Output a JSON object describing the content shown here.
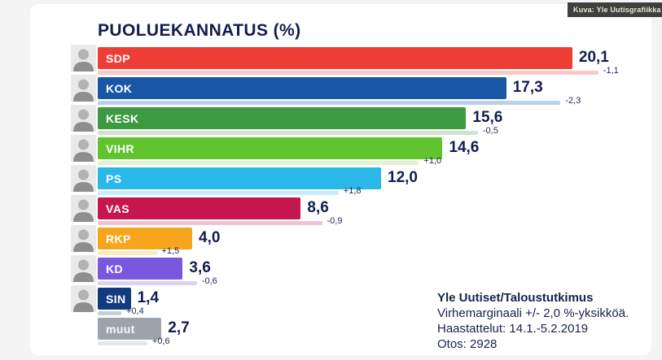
{
  "credit_badge": "Kuva: Yle Uutisgrafiikka",
  "title": "PUOLUEKANNATUS (%)",
  "footer": {
    "source": "Yle Uutiset/Taloustutkimus",
    "margin_of_error": "Virhemarginaali  +/- 2,0 %-yksikköä.",
    "interviews": "Haastattelut: 14.1.-5.2.2019",
    "sample": "Otos: 2928"
  },
  "colors": {
    "title_text": "#121d4e",
    "value_text": "#121d4e",
    "page_background": "#f4f4f5",
    "card_background": "#ffffff",
    "badge_background": "#3f3f3f",
    "badge_text": "#efe9d6"
  },
  "chart_data": {
    "type": "bar",
    "orientation": "horizontal",
    "unit": "%",
    "title": "PUOLUEKANNATUS (%)",
    "categories": [
      "SDP",
      "KOK",
      "KESK",
      "VIHR",
      "PS",
      "VAS",
      "RKP",
      "KD",
      "SIN",
      "muut"
    ],
    "series": [
      {
        "name": "current_support_pct",
        "values": [
          20.1,
          17.3,
          15.6,
          14.6,
          12.0,
          8.6,
          4.0,
          3.6,
          1.4,
          2.7
        ]
      },
      {
        "name": "previous_support_pct",
        "values": [
          21.2,
          19.6,
          16.1,
          13.6,
          10.2,
          9.5,
          2.5,
          4.2,
          1.0,
          2.1
        ]
      },
      {
        "name": "change_pct_points",
        "values": [
          -1.1,
          -2.3,
          -0.5,
          1.0,
          1.8,
          -0.9,
          1.5,
          -0.6,
          0.4,
          0.6
        ]
      }
    ],
    "parties": [
      {
        "label": "SDP",
        "value": 20.1,
        "value_label": "20,1",
        "change_label": "-1,1",
        "previous": 21.2,
        "color": "#ee3d34",
        "light_color": "#f9c9c6",
        "has_photo": true
      },
      {
        "label": "KOK",
        "value": 17.3,
        "value_label": "17,3",
        "change_label": "-2,3",
        "previous": 19.6,
        "color": "#1757a6",
        "light_color": "#bdd1e6",
        "has_photo": true
      },
      {
        "label": "KESK",
        "value": 15.6,
        "value_label": "15,6",
        "change_label": "-0,5",
        "previous": 16.1,
        "color": "#3c9a40",
        "light_color": "#cfe4cd",
        "has_photo": true
      },
      {
        "label": "VIHR",
        "value": 14.6,
        "value_label": "14,6",
        "change_label": "+1,0",
        "previous": 13.6,
        "color": "#61c42e",
        "light_color": "#e2f2d2",
        "has_photo": true
      },
      {
        "label": "PS",
        "value": 12.0,
        "value_label": "12,0",
        "change_label": "+1,8",
        "previous": 10.2,
        "color": "#29b8e9",
        "light_color": "#c9ecf9",
        "has_photo": true
      },
      {
        "label": "VAS",
        "value": 8.6,
        "value_label": "8,6",
        "change_label": "-0,9",
        "previous": 9.5,
        "color": "#c5164d",
        "light_color": "#f1c3d3",
        "has_photo": true
      },
      {
        "label": "RKP",
        "value": 4.0,
        "value_label": "4,0",
        "change_label": "+1,5",
        "previous": 2.5,
        "color": "#f5a61d",
        "light_color": "#fce9c0",
        "has_photo": true
      },
      {
        "label": "KD",
        "value": 3.6,
        "value_label": "3,6",
        "change_label": "-0,6",
        "previous": 4.2,
        "color": "#7a57df",
        "light_color": "#dcd3f3",
        "has_photo": true
      },
      {
        "label": "SIN",
        "value": 1.4,
        "value_label": "1,4",
        "change_label": "+0,4",
        "previous": 1.0,
        "color": "#123a80",
        "light_color": "#c6cfd8",
        "has_photo": true
      },
      {
        "label": "muut",
        "value": 2.7,
        "value_label": "2,7",
        "change_label": "+0,6",
        "previous": 2.1,
        "color": "#9ba4ab",
        "light_color": "#e5e8ea",
        "has_photo": false
      }
    ],
    "legend": null,
    "grid": false,
    "x_range_pct": [
      0,
      22
    ]
  }
}
